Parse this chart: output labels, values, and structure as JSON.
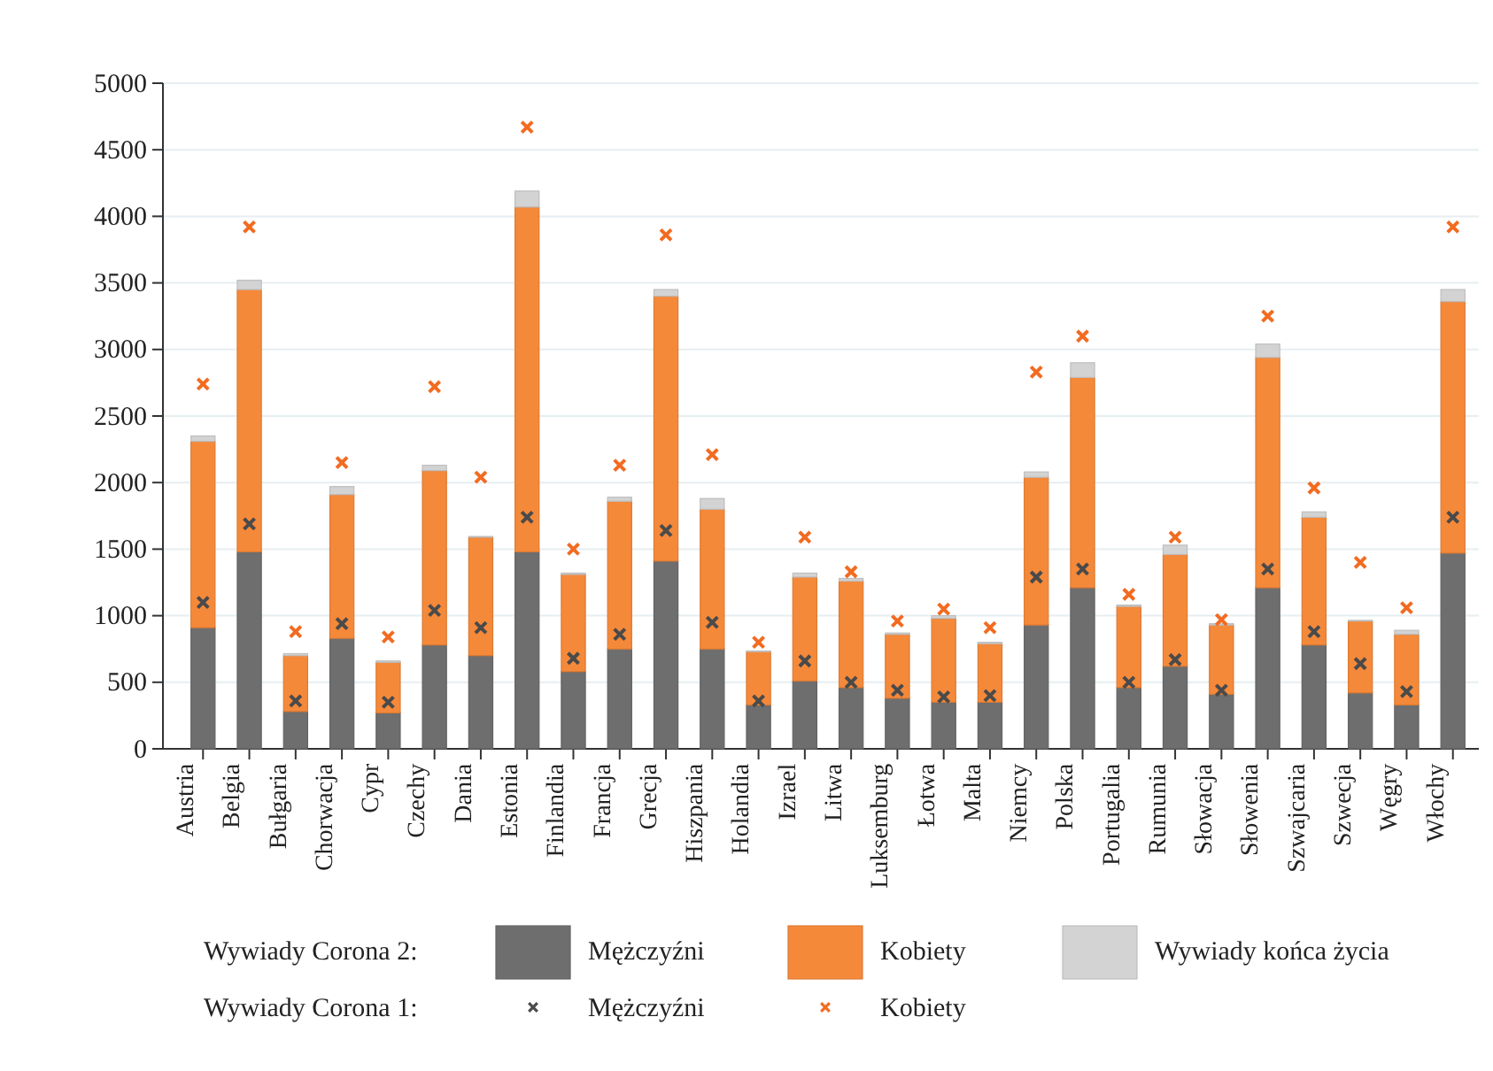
{
  "chart_data": {
    "type": "bar",
    "stacked": true,
    "categories": [
      "Austria",
      "Belgia",
      "Bułgaria",
      "Chorwacja",
      "Cypr",
      "Czechy",
      "Dania",
      "Estonia",
      "Finlandia",
      "Francja",
      "Grecja",
      "Hiszpania",
      "Holandia",
      "Izrael",
      "Litwa",
      "Luksemburg",
      "Łotwa",
      "Malta",
      "Niemcy",
      "Polska",
      "Portugalia",
      "Rumunia",
      "Słowacja",
      "Słowenia",
      "Szwajcaria",
      "Szwecja",
      "Węgry",
      "Włochy"
    ],
    "series": [
      {
        "name": "Mężczyźni",
        "color": "#6e6e6e",
        "values": [
          910,
          1480,
          280,
          830,
          270,
          780,
          700,
          1480,
          580,
          750,
          1410,
          750,
          330,
          510,
          460,
          380,
          350,
          350,
          930,
          1210,
          460,
          620,
          410,
          1210,
          780,
          420,
          330,
          1470
        ]
      },
      {
        "name": "Kobiety",
        "color": "#f5893a",
        "values": [
          1400,
          1970,
          420,
          1080,
          380,
          1310,
          890,
          2590,
          730,
          1110,
          1990,
          1050,
          400,
          780,
          800,
          480,
          630,
          440,
          1110,
          1580,
          610,
          840,
          520,
          1730,
          960,
          540,
          530,
          1890
        ]
      },
      {
        "name": "Wywiady końca życia",
        "color": "#d3d3d3",
        "values": [
          40,
          70,
          15,
          60,
          10,
          40,
          5,
          120,
          10,
          30,
          50,
          80,
          5,
          30,
          20,
          10,
          20,
          10,
          40,
          110,
          10,
          70,
          10,
          100,
          40,
          5,
          30,
          90
        ]
      },
      {
        "name": "Mężczyźni",
        "type": "scatter",
        "marker": "cross",
        "color": "#4a4a4a",
        "values": [
          1100,
          1690,
          360,
          940,
          350,
          1040,
          910,
          1740,
          680,
          860,
          1640,
          950,
          360,
          660,
          500,
          440,
          390,
          400,
          1290,
          1350,
          500,
          670,
          440,
          1350,
          880,
          640,
          430,
          1740
        ]
      },
      {
        "name": "Kobiety",
        "type": "scatter",
        "marker": "cross",
        "color": "#f26b21",
        "values": [
          2740,
          3920,
          880,
          2150,
          840,
          2720,
          2040,
          4670,
          1500,
          2130,
          3860,
          2210,
          800,
          1590,
          1330,
          960,
          1050,
          910,
          2830,
          3100,
          1160,
          1590,
          970,
          3250,
          1960,
          1400,
          1060,
          3920
        ]
      }
    ],
    "ylim": [
      0,
      5000
    ],
    "yticks": [
      0,
      500,
      1000,
      1500,
      2000,
      2500,
      3000,
      3500,
      4000,
      4500,
      5000
    ],
    "grid": "y",
    "legend": "bottom",
    "annotations": [
      "Wywiady Corona 2:",
      "Wywiady Corona 1:"
    ]
  }
}
